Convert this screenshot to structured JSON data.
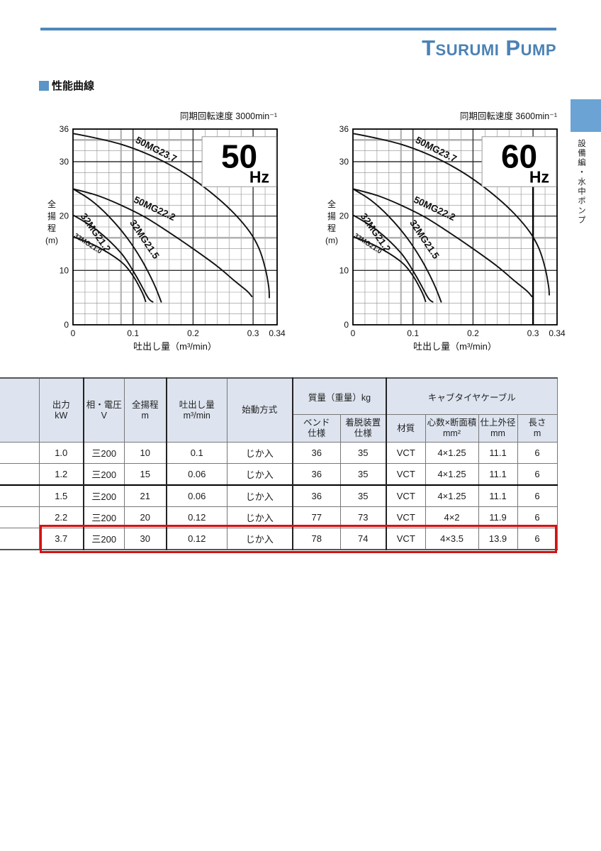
{
  "page": {
    "logo": {
      "p1": "T",
      "p2": "SURUMI",
      "p3": " P",
      "p4": "UMP"
    },
    "section_title": "性能曲線",
    "sidebar_text": "設備編・水中ポンプ",
    "colors": {
      "brand_blue": "#4e88ba",
      "tab_blue": "#6aa3d4",
      "table_header_bg": "#dde4ef",
      "highlight_red": "#d21212"
    }
  },
  "chart_data": [
    {
      "type": "line",
      "title": "同期回転速度 3000min⁻¹",
      "hz": "50",
      "hz_unit": "Hz",
      "xlabel": "吐出し量（m³/min）",
      "ylabel_chars": [
        "全",
        "揚",
        "程",
        "(m)"
      ],
      "xlim": [
        0,
        0.34
      ],
      "ylim": [
        0,
        36
      ],
      "xticks": [
        0,
        0.1,
        0.2,
        0.3,
        0.34
      ],
      "yticks": [
        0,
        10,
        20,
        30,
        36
      ],
      "x_minor_step": 0.02,
      "y_minor_step": 2,
      "gray_band_y": [
        34,
        16
      ],
      "gray_band_x": [
        0.08
      ],
      "grid_on": true,
      "series": [
        {
          "name": "50MG23.7",
          "points": [
            [
              0,
              35.2
            ],
            [
              0.04,
              34.3
            ],
            [
              0.08,
              33.2
            ],
            [
              0.12,
              31.6
            ],
            [
              0.16,
              29.5
            ],
            [
              0.2,
              26.8
            ],
            [
              0.24,
              23.4
            ],
            [
              0.27,
              20.3
            ],
            [
              0.295,
              17
            ],
            [
              0.31,
              14
            ],
            [
              0.32,
              10.5
            ],
            [
              0.326,
              7
            ],
            [
              0.327,
              5
            ]
          ],
          "label": {
            "x": 0.103,
            "y": 33.6,
            "rot": 27,
            "size": 13.5
          }
        },
        {
          "name": "50MG22.2",
          "points": [
            [
              0,
              25
            ],
            [
              0.04,
              23.8
            ],
            [
              0.08,
              22
            ],
            [
              0.12,
              19.8
            ],
            [
              0.16,
              17
            ],
            [
              0.2,
              14
            ],
            [
              0.24,
              10.8
            ],
            [
              0.27,
              8
            ],
            [
              0.29,
              6.2
            ],
            [
              0.298,
              5.2
            ]
          ],
          "label": {
            "x": 0.1,
            "y": 22.6,
            "rot": 25,
            "size": 13.5
          }
        },
        {
          "name": "32MG21.5",
          "points": [
            [
              0,
              25
            ],
            [
              0.03,
              22.9
            ],
            [
              0.06,
              19.9
            ],
            [
              0.09,
              16
            ],
            [
              0.115,
              11.8
            ],
            [
              0.135,
              7.5
            ],
            [
              0.147,
              4.2
            ]
          ],
          "label": {
            "x": 0.094,
            "y": 18.8,
            "rot": 56,
            "size": 13.5
          }
        },
        {
          "name": "32MG21.2",
          "points": [
            [
              0,
              20.2
            ],
            [
              0.04,
              17.4
            ],
            [
              0.08,
              13.2
            ],
            [
              0.105,
              9
            ],
            [
              0.125,
              5
            ],
            [
              0.133,
              4.2
            ]
          ],
          "label": {
            "x": 0.012,
            "y": 20.0,
            "rot": 55,
            "size": 13.5
          }
        },
        {
          "name": "32MG21.0",
          "points": [
            [
              0,
              16.2
            ],
            [
              0.04,
              14.4
            ],
            [
              0.08,
              11.6
            ],
            [
              0.1,
              9
            ],
            [
              0.115,
              6
            ],
            [
              0.121,
              4.3
            ]
          ],
          "label": {
            "x": 0.001,
            "y": 16.2,
            "rot": 33,
            "size": 9.5
          }
        }
      ]
    },
    {
      "type": "line",
      "title": "同期回転速度 3600min⁻¹",
      "hz": "60",
      "hz_unit": "Hz",
      "xlabel": "吐出し量（m³/min）",
      "ylabel_chars": [
        "全",
        "揚",
        "程",
        "(m)"
      ],
      "xlim": [
        0,
        0.34
      ],
      "ylim": [
        0,
        36
      ],
      "xticks": [
        0,
        0.1,
        0.2,
        0.3,
        0.34
      ],
      "yticks": [
        0,
        10,
        20,
        30,
        36
      ],
      "x_minor_step": 0.02,
      "y_minor_step": 2,
      "gray_band_y": [
        34,
        16
      ],
      "gray_band_x": [
        0.08
      ],
      "grid_on": true,
      "marker_line": {
        "x": 0.3,
        "y1": 0,
        "y2": 26
      },
      "series": [
        {
          "name": "50MG23.7",
          "points": [
            [
              0,
              35.2
            ],
            [
              0.04,
              34.3
            ],
            [
              0.08,
              33.2
            ],
            [
              0.12,
              31.6
            ],
            [
              0.16,
              29.5
            ],
            [
              0.2,
              26.8
            ],
            [
              0.24,
              23.4
            ],
            [
              0.27,
              20.3
            ],
            [
              0.295,
              17
            ],
            [
              0.31,
              14
            ],
            [
              0.32,
              10.5
            ],
            [
              0.326,
              7
            ],
            [
              0.327,
              5.5
            ]
          ],
          "label": {
            "x": 0.103,
            "y": 33.6,
            "rot": 27,
            "size": 13.5
          }
        },
        {
          "name": "50MG22.2",
          "points": [
            [
              0,
              25
            ],
            [
              0.04,
              23.8
            ],
            [
              0.08,
              22
            ],
            [
              0.12,
              19.8
            ],
            [
              0.16,
              17
            ],
            [
              0.2,
              14
            ],
            [
              0.24,
              10.8
            ],
            [
              0.27,
              8
            ],
            [
              0.29,
              6.2
            ],
            [
              0.298,
              5.2
            ]
          ],
          "label": {
            "x": 0.1,
            "y": 22.6,
            "rot": 25,
            "size": 13.5
          }
        },
        {
          "name": "32MG21.5",
          "points": [
            [
              0,
              25
            ],
            [
              0.03,
              22.9
            ],
            [
              0.06,
              19.9
            ],
            [
              0.09,
              16
            ],
            [
              0.115,
              11.8
            ],
            [
              0.135,
              7.5
            ],
            [
              0.147,
              4.2
            ]
          ],
          "label": {
            "x": 0.094,
            "y": 18.8,
            "rot": 56,
            "size": 13.5
          }
        },
        {
          "name": "32MG21.2",
          "points": [
            [
              0,
              20.2
            ],
            [
              0.04,
              17.4
            ],
            [
              0.08,
              13.2
            ],
            [
              0.105,
              9
            ],
            [
              0.125,
              5
            ],
            [
              0.133,
              4.2
            ]
          ],
          "label": {
            "x": 0.012,
            "y": 20.0,
            "rot": 55,
            "size": 13.5
          }
        },
        {
          "name": "32MG21.0",
          "points": [
            [
              0,
              16.2
            ],
            [
              0.04,
              14.4
            ],
            [
              0.08,
              11.6
            ],
            [
              0.1,
              9
            ],
            [
              0.115,
              6
            ],
            [
              0.121,
              4.3
            ]
          ],
          "label": {
            "x": 0.001,
            "y": 16.2,
            "rot": 33,
            "size": 9.5
          }
        }
      ]
    }
  ],
  "table": {
    "headers": {
      "model": "",
      "output": {
        "label": "出力",
        "unit": "kW"
      },
      "phase": {
        "label": "相・電圧",
        "unit": "V"
      },
      "head": {
        "label": "全揚程",
        "unit": "m"
      },
      "discharge": {
        "label": "吐出し量",
        "unit": "m³/min"
      },
      "start": {
        "label": "始動方式",
        "unit": ""
      },
      "mass_group": "質量（重量）kg",
      "bend": {
        "label": "ベンド",
        "unit": "仕様"
      },
      "detach": {
        "label": "着脱装置",
        "unit": "仕様"
      },
      "cable_group": "キャブタイヤケーブル",
      "material": {
        "label": "材質",
        "unit": ""
      },
      "cores": {
        "label": "心数×断面積",
        "unit": "mm²"
      },
      "od": {
        "label": "仕上外径",
        "unit": "mm"
      },
      "length": {
        "label": "長さ",
        "unit": "m"
      }
    },
    "rows": [
      [
        "",
        "1.0",
        "三200",
        "10",
        "0.1",
        "じか入",
        "36",
        "35",
        "VCT",
        "4×1.25",
        "11.1",
        "6"
      ],
      [
        "",
        "1.2",
        "三200",
        "15",
        "0.06",
        "じか入",
        "36",
        "35",
        "VCT",
        "4×1.25",
        "11.1",
        "6"
      ],
      [
        "",
        "1.5",
        "三200",
        "21",
        "0.06",
        "じか入",
        "36",
        "35",
        "VCT",
        "4×1.25",
        "11.1",
        "6"
      ],
      [
        "",
        "2.2",
        "三200",
        "20",
        "0.12",
        "じか入",
        "77",
        "73",
        "VCT",
        "4×2",
        "11.9",
        "6"
      ],
      [
        "",
        "3.7",
        "三200",
        "30",
        "0.12",
        "じか入",
        "78",
        "74",
        "VCT",
        "4×3.5",
        "13.9",
        "6"
      ]
    ],
    "highlighted_row_index": 4
  }
}
